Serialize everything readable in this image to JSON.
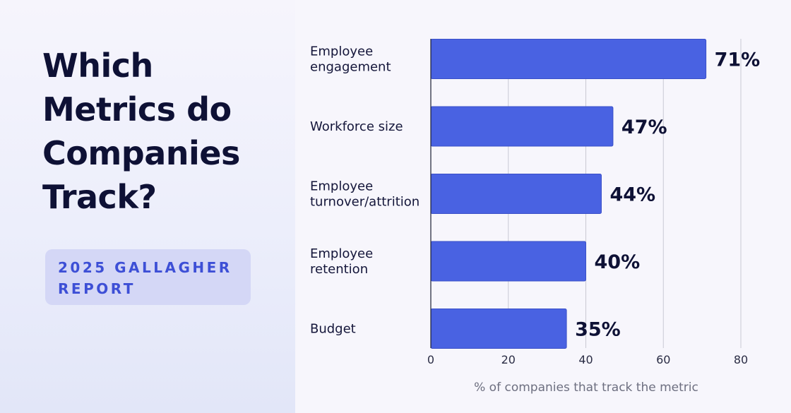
{
  "header": {
    "title_lines": [
      "Which",
      "Metrics do",
      "Companies",
      "Track?"
    ]
  },
  "badge": {
    "lines": [
      "2025 GALLAGHER",
      "REPORT"
    ]
  },
  "colors": {
    "bar": "#4962e2",
    "bar_stroke": "#3a50c8",
    "grid": "#c9c9d3",
    "title": "#0e1135",
    "badge_bg": "#d4d7f6",
    "badge_text": "#3d4fd6"
  },
  "chart_data": {
    "type": "bar",
    "orientation": "horizontal",
    "categories": [
      [
        "Employee",
        "engagement"
      ],
      [
        "Workforce size"
      ],
      [
        "Employee",
        "turnover/attrition"
      ],
      [
        "Employee",
        "retention"
      ],
      [
        "Budget"
      ]
    ],
    "values": [
      71,
      47,
      44,
      40,
      35
    ],
    "value_labels": [
      "71%",
      "47%",
      "44%",
      "40%",
      "35%"
    ],
    "xlabel": "% of companies that track the metric",
    "xlim": [
      0,
      80
    ],
    "xticks": [
      0,
      20,
      40,
      60,
      80
    ],
    "grid": true
  }
}
